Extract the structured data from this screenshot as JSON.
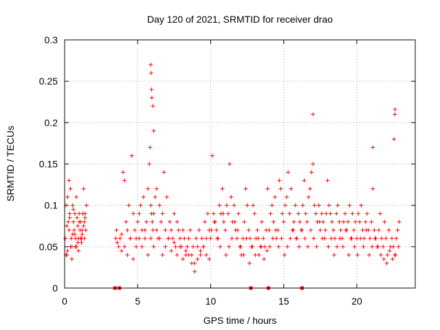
{
  "chart_data": {
    "type": "scatter",
    "title": "Day 120 of 2021, SRMTID for receiver drao",
    "xlabel": "GPS time / hours",
    "ylabel": "SRMTID / TECUs",
    "xlim": [
      0,
      24
    ],
    "ylim": [
      0,
      0.3
    ],
    "x_ticks": [
      0,
      5,
      10,
      15,
      20
    ],
    "x_tick_labels": [
      "0",
      "5",
      "10",
      "15",
      "20"
    ],
    "y_ticks": [
      0,
      0.05,
      0.1,
      0.15,
      0.2,
      0.25,
      0.3
    ],
    "y_tick_labels": [
      "0",
      "0.05",
      "0.1",
      "0.15",
      "0.2",
      "0.25",
      "0.3"
    ],
    "grid": true,
    "series_color": "#ff0000",
    "marker": "plus",
    "series": [
      {
        "name": "SRMTID",
        "x": [
          0.05,
          0.1,
          0.15,
          0.2,
          0.25,
          0.3,
          0.35,
          0.4,
          0.45,
          0.5,
          0.55,
          0.6,
          0.65,
          0.7,
          0.75,
          0.8,
          0.85,
          0.9,
          0.95,
          1.0,
          1.05,
          1.1,
          1.15,
          1.2,
          1.25,
          1.3,
          1.35,
          1.4,
          1.45,
          1.5,
          0.1,
          0.2,
          0.3,
          0.4,
          0.5,
          0.6,
          0.7,
          0.8,
          0.9,
          1.0,
          1.1,
          1.2,
          1.3,
          1.4,
          0.15,
          0.35,
          0.55,
          0.75,
          0.95,
          1.15,
          1.35,
          3.5,
          3.55,
          3.6,
          3.7,
          3.8,
          3.9,
          4.0,
          4.1,
          4.2,
          4.3,
          4.4,
          4.5,
          4.6,
          4.7,
          4.8,
          4.9,
          5.0,
          5.1,
          5.2,
          5.3,
          5.4,
          5.5,
          5.6,
          5.7,
          5.8,
          5.85,
          5.9,
          5.95,
          6.0,
          6.05,
          6.1,
          6.2,
          6.3,
          6.4,
          6.5,
          6.6,
          6.7,
          6.8,
          6.9,
          7.0,
          7.1,
          7.2,
          7.3,
          7.4,
          7.5,
          7.6,
          7.7,
          7.8,
          7.9,
          8.0,
          8.1,
          8.2,
          8.3,
          8.4,
          8.5,
          8.6,
          8.7,
          8.8,
          8.9,
          9.0,
          9.1,
          9.2,
          9.3,
          9.4,
          9.5,
          9.6,
          9.7,
          9.8,
          9.9,
          3.9,
          4.1,
          4.3,
          4.5,
          4.7,
          4.9,
          5.1,
          5.3,
          5.5,
          5.7,
          5.9,
          6.1,
          6.3,
          6.5,
          6.7,
          6.9,
          7.1,
          7.3,
          7.5,
          7.7,
          7.9,
          8.1,
          8.3,
          8.5,
          8.7,
          8.9,
          9.1,
          9.3,
          9.5,
          9.7,
          9.9,
          10.0,
          10.1,
          10.2,
          10.3,
          10.4,
          10.5,
          10.6,
          10.7,
          10.8,
          10.9,
          11.0,
          11.1,
          11.2,
          11.3,
          11.4,
          11.5,
          11.6,
          11.7,
          11.8,
          11.9,
          12.0,
          12.1,
          12.2,
          12.3,
          12.4,
          12.5,
          12.6,
          12.7,
          12.8,
          12.9,
          13.0,
          13.1,
          13.2,
          13.3,
          13.4,
          13.5,
          13.6,
          13.7,
          13.8,
          13.9,
          10.05,
          10.25,
          10.45,
          10.65,
          10.85,
          11.05,
          11.25,
          11.45,
          11.65,
          11.85,
          12.05,
          12.25,
          12.45,
          12.65,
          12.85,
          13.05,
          13.25,
          13.45,
          13.65,
          13.85,
          14.0,
          14.1,
          14.2,
          14.3,
          14.4,
          14.5,
          14.6,
          14.7,
          14.8,
          14.9,
          15.0,
          15.1,
          15.2,
          15.3,
          15.4,
          15.5,
          15.6,
          15.7,
          15.8,
          15.9,
          16.0,
          16.1,
          16.2,
          16.3,
          16.4,
          16.5,
          16.6,
          16.7,
          16.8,
          16.9,
          17.0,
          17.1,
          17.2,
          17.3,
          17.4,
          17.5,
          17.6,
          17.7,
          17.8,
          17.9,
          14.05,
          14.25,
          14.45,
          14.65,
          14.85,
          15.05,
          15.25,
          15.45,
          15.65,
          15.85,
          16.05,
          16.25,
          16.45,
          16.65,
          16.85,
          17.05,
          17.25,
          17.45,
          17.65,
          17.85,
          18.0,
          18.1,
          18.2,
          18.3,
          18.4,
          18.5,
          18.6,
          18.7,
          18.8,
          18.9,
          19.0,
          19.1,
          19.2,
          19.3,
          19.4,
          19.5,
          19.6,
          19.7,
          19.8,
          19.9,
          20.0,
          20.1,
          20.2,
          20.3,
          20.4,
          20.5,
          20.6,
          20.7,
          20.8,
          20.9,
          21.0,
          21.1,
          21.2,
          21.3,
          21.4,
          21.5,
          21.6,
          21.7,
          21.8,
          21.9,
          22.0,
          22.1,
          22.2,
          22.3,
          22.4,
          22.5,
          22.6,
          22.7,
          22.8,
          22.9,
          18.05,
          18.25,
          18.45,
          18.65,
          18.85,
          19.05,
          19.25,
          19.45,
          19.65,
          19.85,
          20.05,
          20.25,
          20.45,
          20.65,
          20.85,
          21.05,
          21.25,
          21.45,
          21.65,
          21.85,
          22.05,
          22.25,
          22.45,
          22.65,
          22.85,
          5.9,
          5.92,
          5.95,
          5.97,
          6.05,
          6.1,
          17.0,
          22.6,
          22.62,
          22.55,
          21.1
        ],
        "y": [
          0.06,
          0.1,
          0.04,
          0.11,
          0.08,
          0.07,
          0.09,
          0.12,
          0.06,
          0.05,
          0.1,
          0.08,
          0.07,
          0.09,
          0.06,
          0.05,
          0.085,
          0.075,
          0.06,
          0.09,
          0.07,
          0.08,
          0.055,
          0.065,
          0.09,
          0.075,
          0.06,
          0.085,
          0.07,
          0.1,
          0.04,
          0.045,
          0.13,
          0.05,
          0.035,
          0.095,
          0.065,
          0.11,
          0.055,
          0.08,
          0.06,
          0.07,
          0.12,
          0.09,
          0.075,
          0.085,
          0.065,
          0.05,
          0.045,
          0.06,
          0.08,
          0.06,
          0.07,
          0.055,
          0.05,
          0.06,
          0.065,
          0.14,
          0.13,
          0.08,
          0.07,
          0.1,
          0.06,
          0.16,
          0.09,
          0.07,
          0.06,
          0.08,
          0.09,
          0.1,
          0.07,
          0.11,
          0.06,
          0.08,
          0.12,
          0.15,
          0.17,
          0.1,
          0.09,
          0.08,
          0.07,
          0.09,
          0.11,
          0.12,
          0.06,
          0.1,
          0.08,
          0.09,
          0.14,
          0.07,
          0.11,
          0.06,
          0.08,
          0.07,
          0.06,
          0.09,
          0.05,
          0.08,
          0.07,
          0.06,
          0.05,
          0.07,
          0.06,
          0.04,
          0.05,
          0.06,
          0.07,
          0.04,
          0.05,
          0.03,
          0.06,
          0.05,
          0.07,
          0.04,
          0.06,
          0.05,
          0.08,
          0.06,
          0.09,
          0.07,
          0.045,
          0.05,
          0.04,
          0.06,
          0.035,
          0.05,
          0.06,
          0.05,
          0.07,
          0.04,
          0.06,
          0.05,
          0.07,
          0.06,
          0.04,
          0.05,
          0.06,
          0.045,
          0.055,
          0.04,
          0.05,
          0.035,
          0.045,
          0.04,
          0.03,
          0.02,
          0.035,
          0.045,
          0.05,
          0.04,
          0.035,
          0.06,
          0.16,
          0.09,
          0.08,
          0.07,
          0.06,
          0.1,
          0.09,
          0.12,
          0.08,
          0.07,
          0.1,
          0.09,
          0.15,
          0.11,
          0.08,
          0.1,
          0.07,
          0.06,
          0.09,
          0.05,
          0.04,
          0.06,
          0.08,
          0.12,
          0.1,
          0.07,
          0.06,
          0.05,
          0.1,
          0.09,
          0.06,
          0.07,
          0.04,
          0.05,
          0.08,
          0.06,
          0.05,
          0.07,
          0.12,
          0.07,
          0.08,
          0.06,
          0.05,
          0.09,
          0.04,
          0.05,
          0.06,
          0.08,
          0.07,
          0.05,
          0.04,
          0.06,
          0.03,
          0.05,
          0.04,
          0.06,
          0.05,
          0.035,
          0.045,
          0.07,
          0.09,
          0.1,
          0.08,
          0.11,
          0.06,
          0.07,
          0.13,
          0.12,
          0.09,
          0.08,
          0.1,
          0.11,
          0.14,
          0.09,
          0.12,
          0.07,
          0.08,
          0.1,
          0.06,
          0.09,
          0.08,
          0.07,
          0.1,
          0.13,
          0.09,
          0.08,
          0.11,
          0.12,
          0.14,
          0.15,
          0.1,
          0.09,
          0.08,
          0.1,
          0.07,
          0.09,
          0.08,
          0.06,
          0.09,
          0.05,
          0.06,
          0.07,
          0.05,
          0.06,
          0.04,
          0.05,
          0.06,
          0.07,
          0.06,
          0.05,
          0.07,
          0.06,
          0.05,
          0.07,
          0.06,
          0.05,
          0.08,
          0.06,
          0.07,
          0.13,
          0.1,
          0.09,
          0.08,
          0.07,
          0.06,
          0.09,
          0.1,
          0.08,
          0.07,
          0.06,
          0.08,
          0.09,
          0.07,
          0.08,
          0.1,
          0.06,
          0.09,
          0.07,
          0.08,
          0.06,
          0.09,
          0.08,
          0.1,
          0.07,
          0.06,
          0.08,
          0.09,
          0.07,
          0.06,
          0.08,
          0.12,
          0.07,
          0.06,
          0.05,
          0.07,
          0.09,
          0.06,
          0.05,
          0.08,
          0.06,
          0.04,
          0.07,
          0.05,
          0.06,
          0.05,
          0.04,
          0.06,
          0.07,
          0.08,
          0.05,
          0.06,
          0.04,
          0.05,
          0.06,
          0.05,
          0.07,
          0.04,
          0.06,
          0.05,
          0.04,
          0.06,
          0.05,
          0.07,
          0.04,
          0.05,
          0.06,
          0.05,
          0.04,
          0.035,
          0.03,
          0.045,
          0.035,
          0.04,
          0.05,
          0.27,
          0.26,
          0.24,
          0.23,
          0.22,
          0.19,
          0.21,
          0.21,
          0.216,
          0.18,
          0.17
        ],
        "highlighted_points": {
          "x": [
            3.45,
            3.75,
            12.75,
            13.95,
            16.25
          ],
          "y": [
            0,
            0,
            0,
            0,
            0
          ]
        }
      }
    ]
  }
}
